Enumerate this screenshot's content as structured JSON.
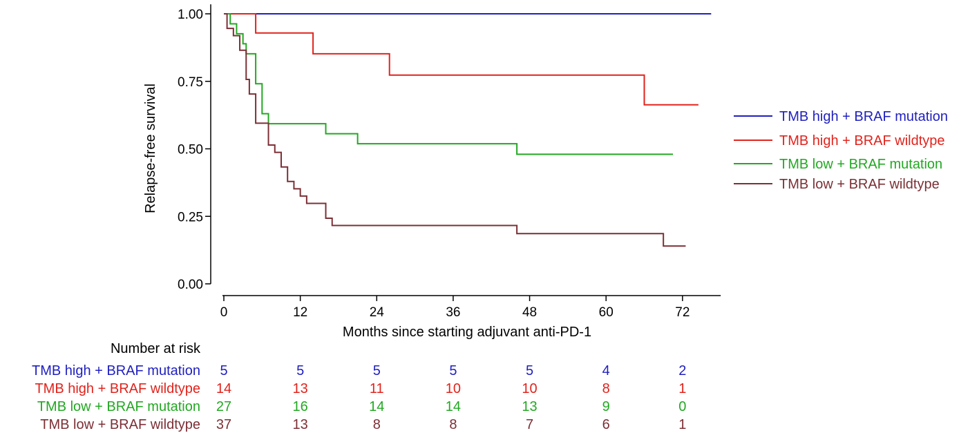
{
  "chart_data": {
    "type": "line",
    "subtype": "kaplan-meier-step",
    "xlabel": "Months since starting adjuvant anti-PD-1",
    "ylabel": "Relapse-free survival",
    "xlim": [
      -1.5,
      78
    ],
    "ylim": [
      -0.04,
      1.03
    ],
    "xticks": [
      0,
      12,
      24,
      36,
      48,
      60,
      72
    ],
    "yticks": [
      0.0,
      0.25,
      0.5,
      0.75,
      1.0
    ],
    "ytick_labels": [
      "0.00",
      "0.25",
      "0.50",
      "0.75",
      "1.00"
    ],
    "grid": false,
    "legend_position": "right",
    "series": [
      {
        "name": "TMB high + BRAF mutation",
        "color": "#1f1fbf",
        "steps": [
          [
            0,
            1.0
          ],
          [
            76.5,
            1.0
          ]
        ]
      },
      {
        "name": "TMB high + BRAF wildtype",
        "color": "#e0231c",
        "steps": [
          [
            0,
            1.0
          ],
          [
            5,
            0.929
          ],
          [
            14,
            0.852
          ],
          [
            26,
            0.773
          ],
          [
            66,
            0.663
          ],
          [
            74.5,
            0.663
          ]
        ]
      },
      {
        "name": "TMB low + BRAF mutation",
        "color": "#22a822",
        "steps": [
          [
            0,
            1.0
          ],
          [
            1,
            0.963
          ],
          [
            2,
            0.926
          ],
          [
            3,
            0.889
          ],
          [
            3.5,
            0.852
          ],
          [
            5,
            0.741
          ],
          [
            6,
            0.63
          ],
          [
            7,
            0.593
          ],
          [
            16,
            0.556
          ],
          [
            21,
            0.519
          ],
          [
            46,
            0.48
          ],
          [
            70.5,
            0.48
          ]
        ]
      },
      {
        "name": "TMB low + BRAF wildtype",
        "color": "#7b2f35",
        "steps": [
          [
            0,
            1.0
          ],
          [
            0.5,
            0.946
          ],
          [
            1.5,
            0.919
          ],
          [
            2.5,
            0.865
          ],
          [
            3.5,
            0.757
          ],
          [
            4,
            0.703
          ],
          [
            5,
            0.595
          ],
          [
            7,
            0.514
          ],
          [
            8,
            0.487
          ],
          [
            9,
            0.433
          ],
          [
            10,
            0.379
          ],
          [
            11,
            0.352
          ],
          [
            12,
            0.325
          ],
          [
            13,
            0.298
          ],
          [
            16,
            0.243
          ],
          [
            17,
            0.216
          ],
          [
            46,
            0.186
          ],
          [
            69,
            0.14
          ],
          [
            72.5,
            0.14
          ]
        ]
      }
    ],
    "risk_table": {
      "title": "Number at risk",
      "times": [
        0,
        12,
        24,
        36,
        48,
        60,
        72
      ],
      "rows": [
        {
          "label": "TMB high + BRAF mutation",
          "color": "#1f1fbf",
          "counts": [
            5,
            5,
            5,
            5,
            5,
            4,
            2
          ]
        },
        {
          "label": "TMB high + BRAF wildtype",
          "color": "#e0231c",
          "counts": [
            14,
            13,
            11,
            10,
            10,
            8,
            1
          ]
        },
        {
          "label": "TMB low + BRAF mutation",
          "color": "#22a822",
          "counts": [
            27,
            16,
            14,
            14,
            13,
            9,
            0
          ]
        },
        {
          "label": "TMB low + BRAF wildtype",
          "color": "#7b2f35",
          "counts": [
            37,
            13,
            8,
            8,
            7,
            6,
            1
          ]
        }
      ]
    }
  }
}
